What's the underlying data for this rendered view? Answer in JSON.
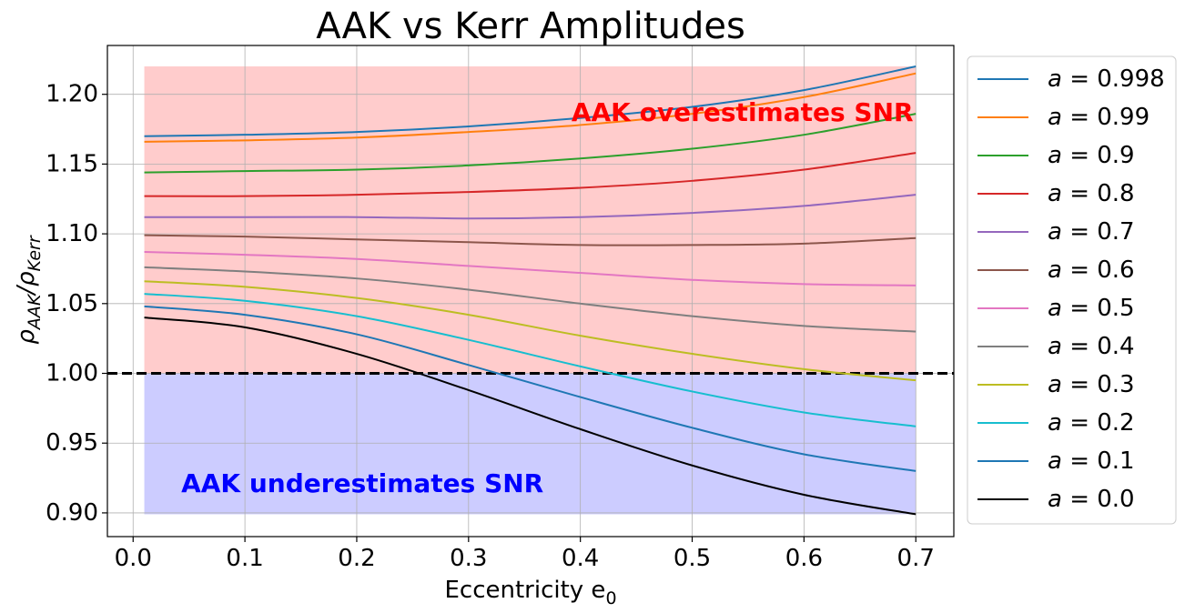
{
  "chart_data": {
    "type": "line",
    "title": "AAK vs Kerr Amplitudes",
    "xlabel": "Eccentricity e",
    "xlabel_sub": "0",
    "ylabel": "ρ",
    "ylabel_sub1": "AAK",
    "ylabel_mid": "/ρ",
    "ylabel_sub2": "Kerr",
    "xlim": [
      -0.023,
      0.734
    ],
    "ylim": [
      0.883,
      1.235
    ],
    "xticks": [
      0.0,
      0.1,
      0.2,
      0.3,
      0.4,
      0.5,
      0.6,
      0.7
    ],
    "xtick_labels": [
      "0.0",
      "0.1",
      "0.2",
      "0.3",
      "0.4",
      "0.5",
      "0.6",
      "0.7"
    ],
    "yticks": [
      0.9,
      0.95,
      1.0,
      1.05,
      1.1,
      1.15,
      1.2
    ],
    "ytick_labels": [
      "0.90",
      "0.95",
      "1.00",
      "1.05",
      "1.10",
      "1.15",
      "1.20"
    ],
    "grid": true,
    "legend_position": "outside-right",
    "x": [
      0.01,
      0.1,
      0.2,
      0.3,
      0.4,
      0.5,
      0.6,
      0.7
    ],
    "series": [
      {
        "name": "a = 0.998",
        "color": "#1f77b4",
        "values": [
          1.17,
          1.171,
          1.173,
          1.177,
          1.183,
          1.191,
          1.203,
          1.22
        ]
      },
      {
        "name": "a = 0.99",
        "color": "#ff7f0e",
        "values": [
          1.166,
          1.167,
          1.169,
          1.173,
          1.178,
          1.186,
          1.198,
          1.215
        ]
      },
      {
        "name": "a = 0.9",
        "color": "#2ca02c",
        "values": [
          1.144,
          1.145,
          1.146,
          1.149,
          1.154,
          1.161,
          1.171,
          1.186
        ]
      },
      {
        "name": "a = 0.8",
        "color": "#d62728",
        "values": [
          1.127,
          1.127,
          1.128,
          1.13,
          1.133,
          1.138,
          1.146,
          1.158
        ]
      },
      {
        "name": "a = 0.7",
        "color": "#9467bd",
        "values": [
          1.112,
          1.112,
          1.112,
          1.111,
          1.112,
          1.115,
          1.12,
          1.128
        ]
      },
      {
        "name": "a = 0.6",
        "color": "#8c564b",
        "values": [
          1.099,
          1.098,
          1.096,
          1.094,
          1.092,
          1.092,
          1.093,
          1.097
        ]
      },
      {
        "name": "a = 0.5",
        "color": "#e377c2",
        "values": [
          1.087,
          1.085,
          1.082,
          1.077,
          1.072,
          1.067,
          1.064,
          1.063
        ]
      },
      {
        "name": "a = 0.4",
        "color": "#7f7f7f",
        "values": [
          1.076,
          1.073,
          1.068,
          1.06,
          1.05,
          1.041,
          1.034,
          1.03
        ]
      },
      {
        "name": "a = 0.3",
        "color": "#bcbd22",
        "values": [
          1.066,
          1.062,
          1.054,
          1.042,
          1.027,
          1.014,
          1.003,
          0.995
        ]
      },
      {
        "name": "a = 0.2",
        "color": "#17becf",
        "values": [
          1.057,
          1.052,
          1.041,
          1.024,
          1.005,
          0.987,
          0.972,
          0.962
        ]
      },
      {
        "name": "a = 0.1",
        "color": "#1f77b4",
        "values": [
          1.048,
          1.042,
          1.028,
          1.006,
          0.983,
          0.961,
          0.942,
          0.93
        ]
      },
      {
        "name": "a = 0.0",
        "color": "#000000",
        "values": [
          1.04,
          1.033,
          1.014,
          0.988,
          0.96,
          0.934,
          0.913,
          0.899
        ]
      }
    ],
    "reference_line": {
      "y": 1.0,
      "style": "dashed",
      "color": "#000000"
    },
    "regions": [
      {
        "x": [
          0.01,
          0.7
        ],
        "y": [
          1.0,
          1.22
        ],
        "color": "#ff0000",
        "opacity": 0.2
      },
      {
        "x": [
          0.01,
          0.7
        ],
        "y": [
          0.899,
          1.0
        ],
        "color": "#0000ff",
        "opacity": 0.2
      }
    ],
    "annotations": [
      {
        "text": "AAK overestimates SNR",
        "x": 0.392,
        "y": 1.186,
        "color": "#ff0000",
        "anchor": "start"
      },
      {
        "text": "AAK underestimates SNR",
        "x": 0.043,
        "y": 0.92,
        "color": "#0000ff",
        "anchor": "start"
      }
    ]
  }
}
